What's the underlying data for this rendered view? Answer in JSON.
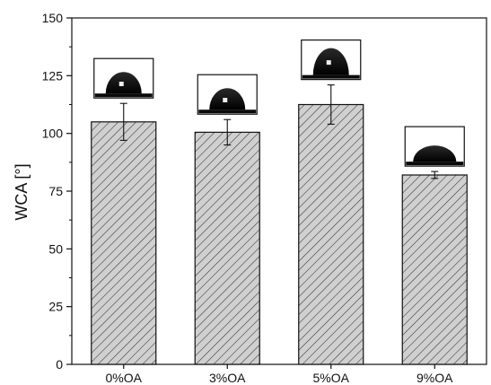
{
  "chart_data": {
    "type": "bar",
    "ylabel": "WCA [°]",
    "xlabel": "",
    "title": "",
    "categories": [
      "0%OA",
      "3%OA",
      "5%OA",
      "9%OA"
    ],
    "values": [
      105,
      100.5,
      112.5,
      82
    ],
    "errors": [
      8,
      5.5,
      8.5,
      1.5
    ],
    "ylim": [
      0,
      150
    ],
    "yticks": [
      0,
      25,
      50,
      75,
      100,
      125,
      150
    ],
    "grid": false,
    "legend": "none",
    "bar_fill": "hatched-gray",
    "inset_images": [
      "droplet-0%OA",
      "droplet-3%OA",
      "droplet-5%OA",
      "droplet-9%OA"
    ]
  },
  "colors": {
    "bar_fill": "#d0d0d0",
    "hatch": "#333333",
    "axis": "#111111",
    "droplet": "#0a0a0a"
  }
}
